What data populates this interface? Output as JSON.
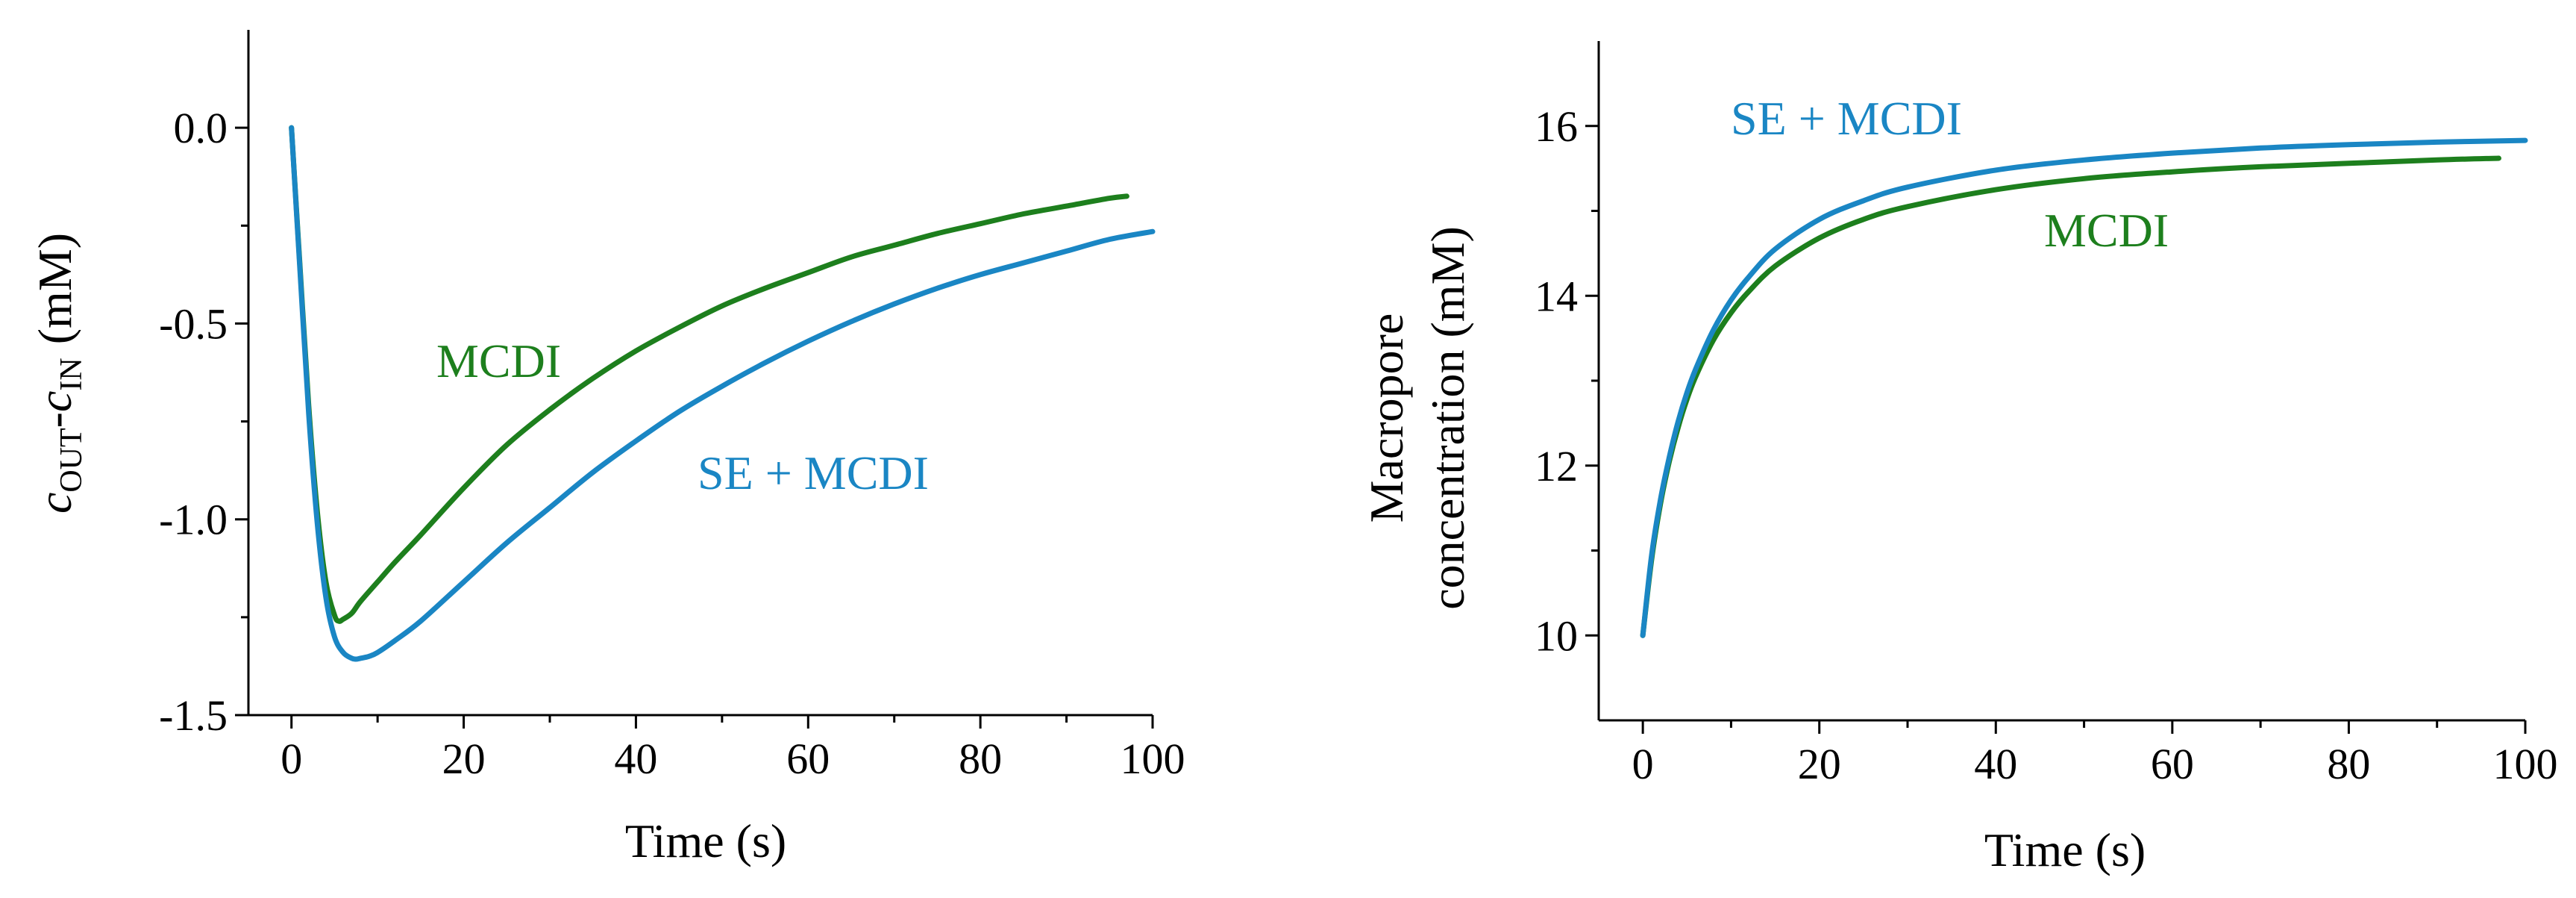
{
  "colors": {
    "se_mcdi": "#1a86c4",
    "mcdi": "#1d7f1d",
    "axis": "#000000"
  },
  "chart_data": [
    {
      "type": "line",
      "title": "",
      "xlabel": "Time (s)",
      "ylabel_parts": {
        "c1": "c",
        "s1": "OUT",
        "dash": "-",
        "c2": "c",
        "s2": "IN",
        "unit": "(mM)"
      },
      "xlim": [
        -5,
        100
      ],
      "ylim": [
        -1.5,
        0.25
      ],
      "xticks": [
        0,
        20,
        40,
        60,
        80,
        100
      ],
      "xtick_labels": [
        "0",
        "20",
        "40",
        "60",
        "80",
        "100"
      ],
      "yticks": [
        0.0,
        -0.5,
        -1.0,
        -1.5
      ],
      "ytick_labels": [
        "0.0",
        "-0.5",
        "-1.0",
        "-1.5"
      ],
      "annotations": {
        "mcdi": "MCDI",
        "se_mcdi": "SE + MCDI"
      },
      "series": [
        {
          "name": "MCDI",
          "color": "#1d7f1d",
          "x": [
            0,
            1,
            2,
            3,
            4,
            5,
            5.5,
            6,
            7,
            8,
            10,
            12,
            15,
            20,
            25,
            30,
            35,
            40,
            45,
            50,
            55,
            60,
            65,
            70,
            75,
            80,
            85,
            90,
            95,
            97
          ],
          "y": [
            0,
            -0.36,
            -0.71,
            -0.98,
            -1.16,
            -1.245,
            -1.26,
            -1.255,
            -1.24,
            -1.21,
            -1.16,
            -1.11,
            -1.04,
            -0.92,
            -0.81,
            -0.72,
            -0.64,
            -0.57,
            -0.51,
            -0.455,
            -0.41,
            -0.37,
            -0.33,
            -0.3,
            -0.27,
            -0.245,
            -0.22,
            -0.2,
            -0.18,
            -0.175
          ]
        },
        {
          "name": "SE + MCDI",
          "color": "#1a86c4",
          "x": [
            0,
            1,
            2,
            3,
            4,
            5,
            6,
            7,
            7.5,
            8,
            9,
            10,
            12,
            15,
            20,
            25,
            30,
            35,
            40,
            45,
            50,
            55,
            60,
            65,
            70,
            75,
            80,
            85,
            90,
            95,
            100
          ],
          "y": [
            0,
            -0.37,
            -0.73,
            -1.01,
            -1.2,
            -1.3,
            -1.34,
            -1.355,
            -1.357,
            -1.355,
            -1.35,
            -1.34,
            -1.31,
            -1.26,
            -1.16,
            -1.06,
            -0.97,
            -0.88,
            -0.8,
            -0.725,
            -0.66,
            -0.6,
            -0.545,
            -0.495,
            -0.45,
            -0.41,
            -0.375,
            -0.345,
            -0.315,
            -0.285,
            -0.265
          ]
        }
      ]
    },
    {
      "type": "line",
      "title": "",
      "xlabel": "Time (s)",
      "ylabel_line1": "Macropore",
      "ylabel_line2": "concentration (mM)",
      "xlim": [
        -5,
        100
      ],
      "ylim": [
        9,
        17
      ],
      "xticks": [
        0,
        20,
        40,
        60,
        80,
        100
      ],
      "xtick_labels": [
        "0",
        "20",
        "40",
        "60",
        "80",
        "100"
      ],
      "yticks": [
        10,
        12,
        14,
        16
      ],
      "ytick_labels": [
        "10",
        "12",
        "14",
        "16"
      ],
      "annotations": {
        "se_mcdi": "SE + MCDI",
        "mcdi": "MCDI"
      },
      "series": [
        {
          "name": "MCDI",
          "color": "#1d7f1d",
          "x": [
            0,
            1,
            2,
            3,
            4,
            5,
            6,
            8,
            10,
            12,
            15,
            20,
            25,
            30,
            40,
            50,
            60,
            70,
            80,
            90,
            97
          ],
          "y": [
            10,
            10.9,
            11.55,
            12.05,
            12.45,
            12.78,
            13.05,
            13.48,
            13.8,
            14.05,
            14.35,
            14.68,
            14.9,
            15.05,
            15.25,
            15.38,
            15.46,
            15.52,
            15.56,
            15.6,
            15.62
          ]
        },
        {
          "name": "SE + MCDI",
          "color": "#1a86c4",
          "x": [
            0,
            1,
            2,
            3,
            4,
            5,
            6,
            8,
            10,
            12,
            15,
            20,
            25,
            30,
            40,
            50,
            60,
            70,
            80,
            90,
            100
          ],
          "y": [
            10,
            10.95,
            11.6,
            12.1,
            12.52,
            12.86,
            13.14,
            13.6,
            13.95,
            14.22,
            14.55,
            14.9,
            15.12,
            15.28,
            15.48,
            15.6,
            15.68,
            15.74,
            15.78,
            15.81,
            15.83
          ]
        }
      ]
    }
  ]
}
